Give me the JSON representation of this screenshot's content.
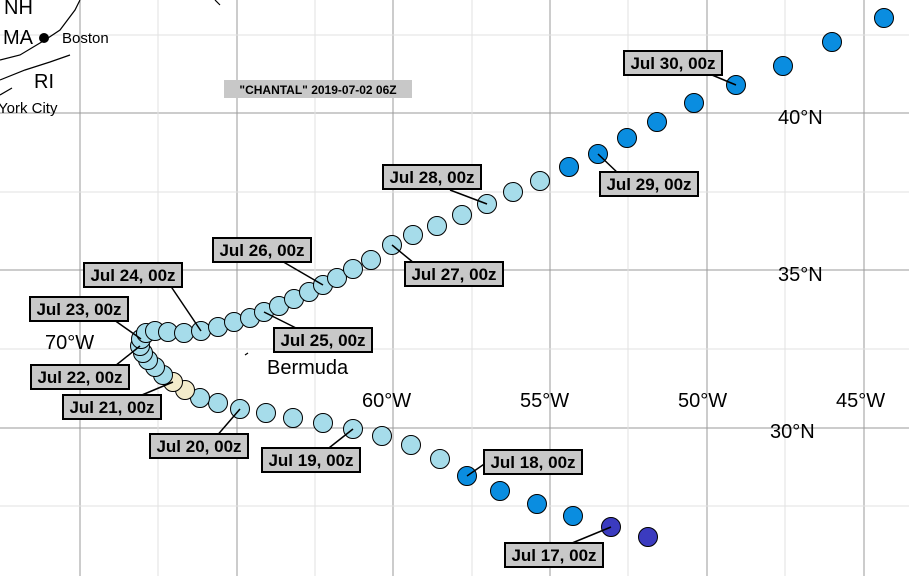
{
  "map": {
    "title": "\"CHANTAL\" 2019-07-02 06Z",
    "places": [
      "NH",
      "MA",
      "Boston",
      "RI",
      "York City",
      "Bermuda"
    ],
    "longitudes": [
      "70°W",
      "60°W",
      "55°W",
      "50°W",
      "45°W"
    ],
    "latitudes": [
      "40°N",
      "35°N",
      "30°N"
    ],
    "dates": [
      "Jul 17, 00z",
      "Jul 18, 00z",
      "Jul 19, 00z",
      "Jul 20, 00z",
      "Jul 21, 00z",
      "Jul 22, 00z",
      "Jul 23, 00z",
      "Jul 24, 00z",
      "Jul 25, 00z",
      "Jul 26, 00z",
      "Jul 27, 00z",
      "Jul 28, 00z",
      "Jul 29, 00z",
      "Jul 30, 00z"
    ]
  }
}
